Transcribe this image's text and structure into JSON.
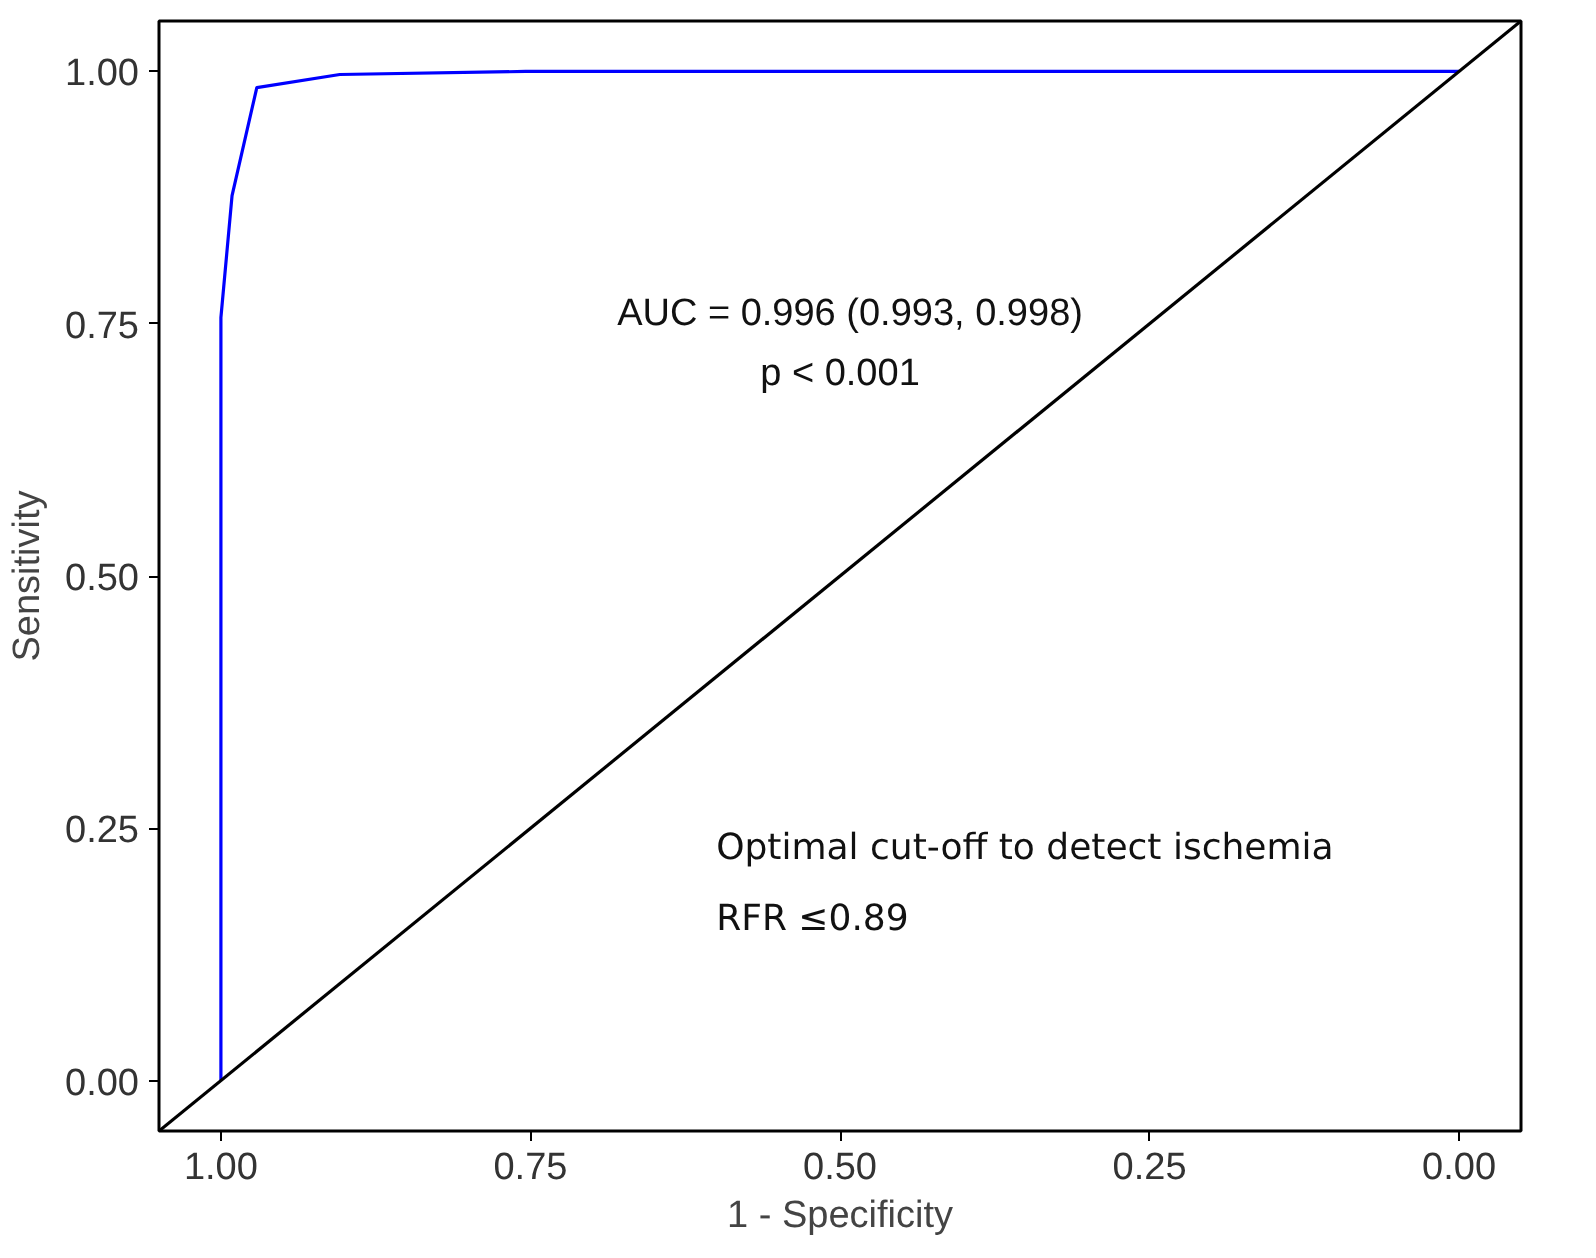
{
  "chart_data": {
    "type": "line",
    "xlabel": "1 - Specificity",
    "ylabel": "Sensitivity",
    "xlim": [
      1.05,
      -0.05
    ],
    "ylim": [
      -0.05,
      1.05
    ],
    "xticks": [
      {
        "value": 1.0,
        "label": "1.00"
      },
      0.75,
      {
        "value": 0.5,
        "label": "0.50"
      },
      0.25,
      {
        "value": 0.0,
        "label": "0.00"
      }
    ],
    "yticks": [
      {
        "value": 0.0,
        "label": "0.00"
      },
      0.25,
      {
        "value": 0.5,
        "label": "0.50"
      },
      0.75,
      {
        "value": 1.0,
        "label": "1.00"
      }
    ],
    "grid": false,
    "marker": "none",
    "line_style": "solid",
    "series": [
      {
        "color": "#0000ff",
        "x": [
          1.0,
          1.0,
          0.991,
          0.971,
          0.904,
          0.754,
          0.0
        ],
        "values": [
          0.0,
          0.756,
          0.877,
          0.984,
          0.997,
          1.0,
          1.0
        ]
      },
      {
        "color": "#000000",
        "x": [
          1.05,
          -0.05
        ],
        "values": [
          -0.05,
          1.05
        ]
      }
    ],
    "annotations": [
      "AUC = 0.996 (0.993, 0.998)",
      "p < 0.001",
      "Optimal cut-off to detect ischemia",
      "RFR ≤0.89"
    ]
  }
}
